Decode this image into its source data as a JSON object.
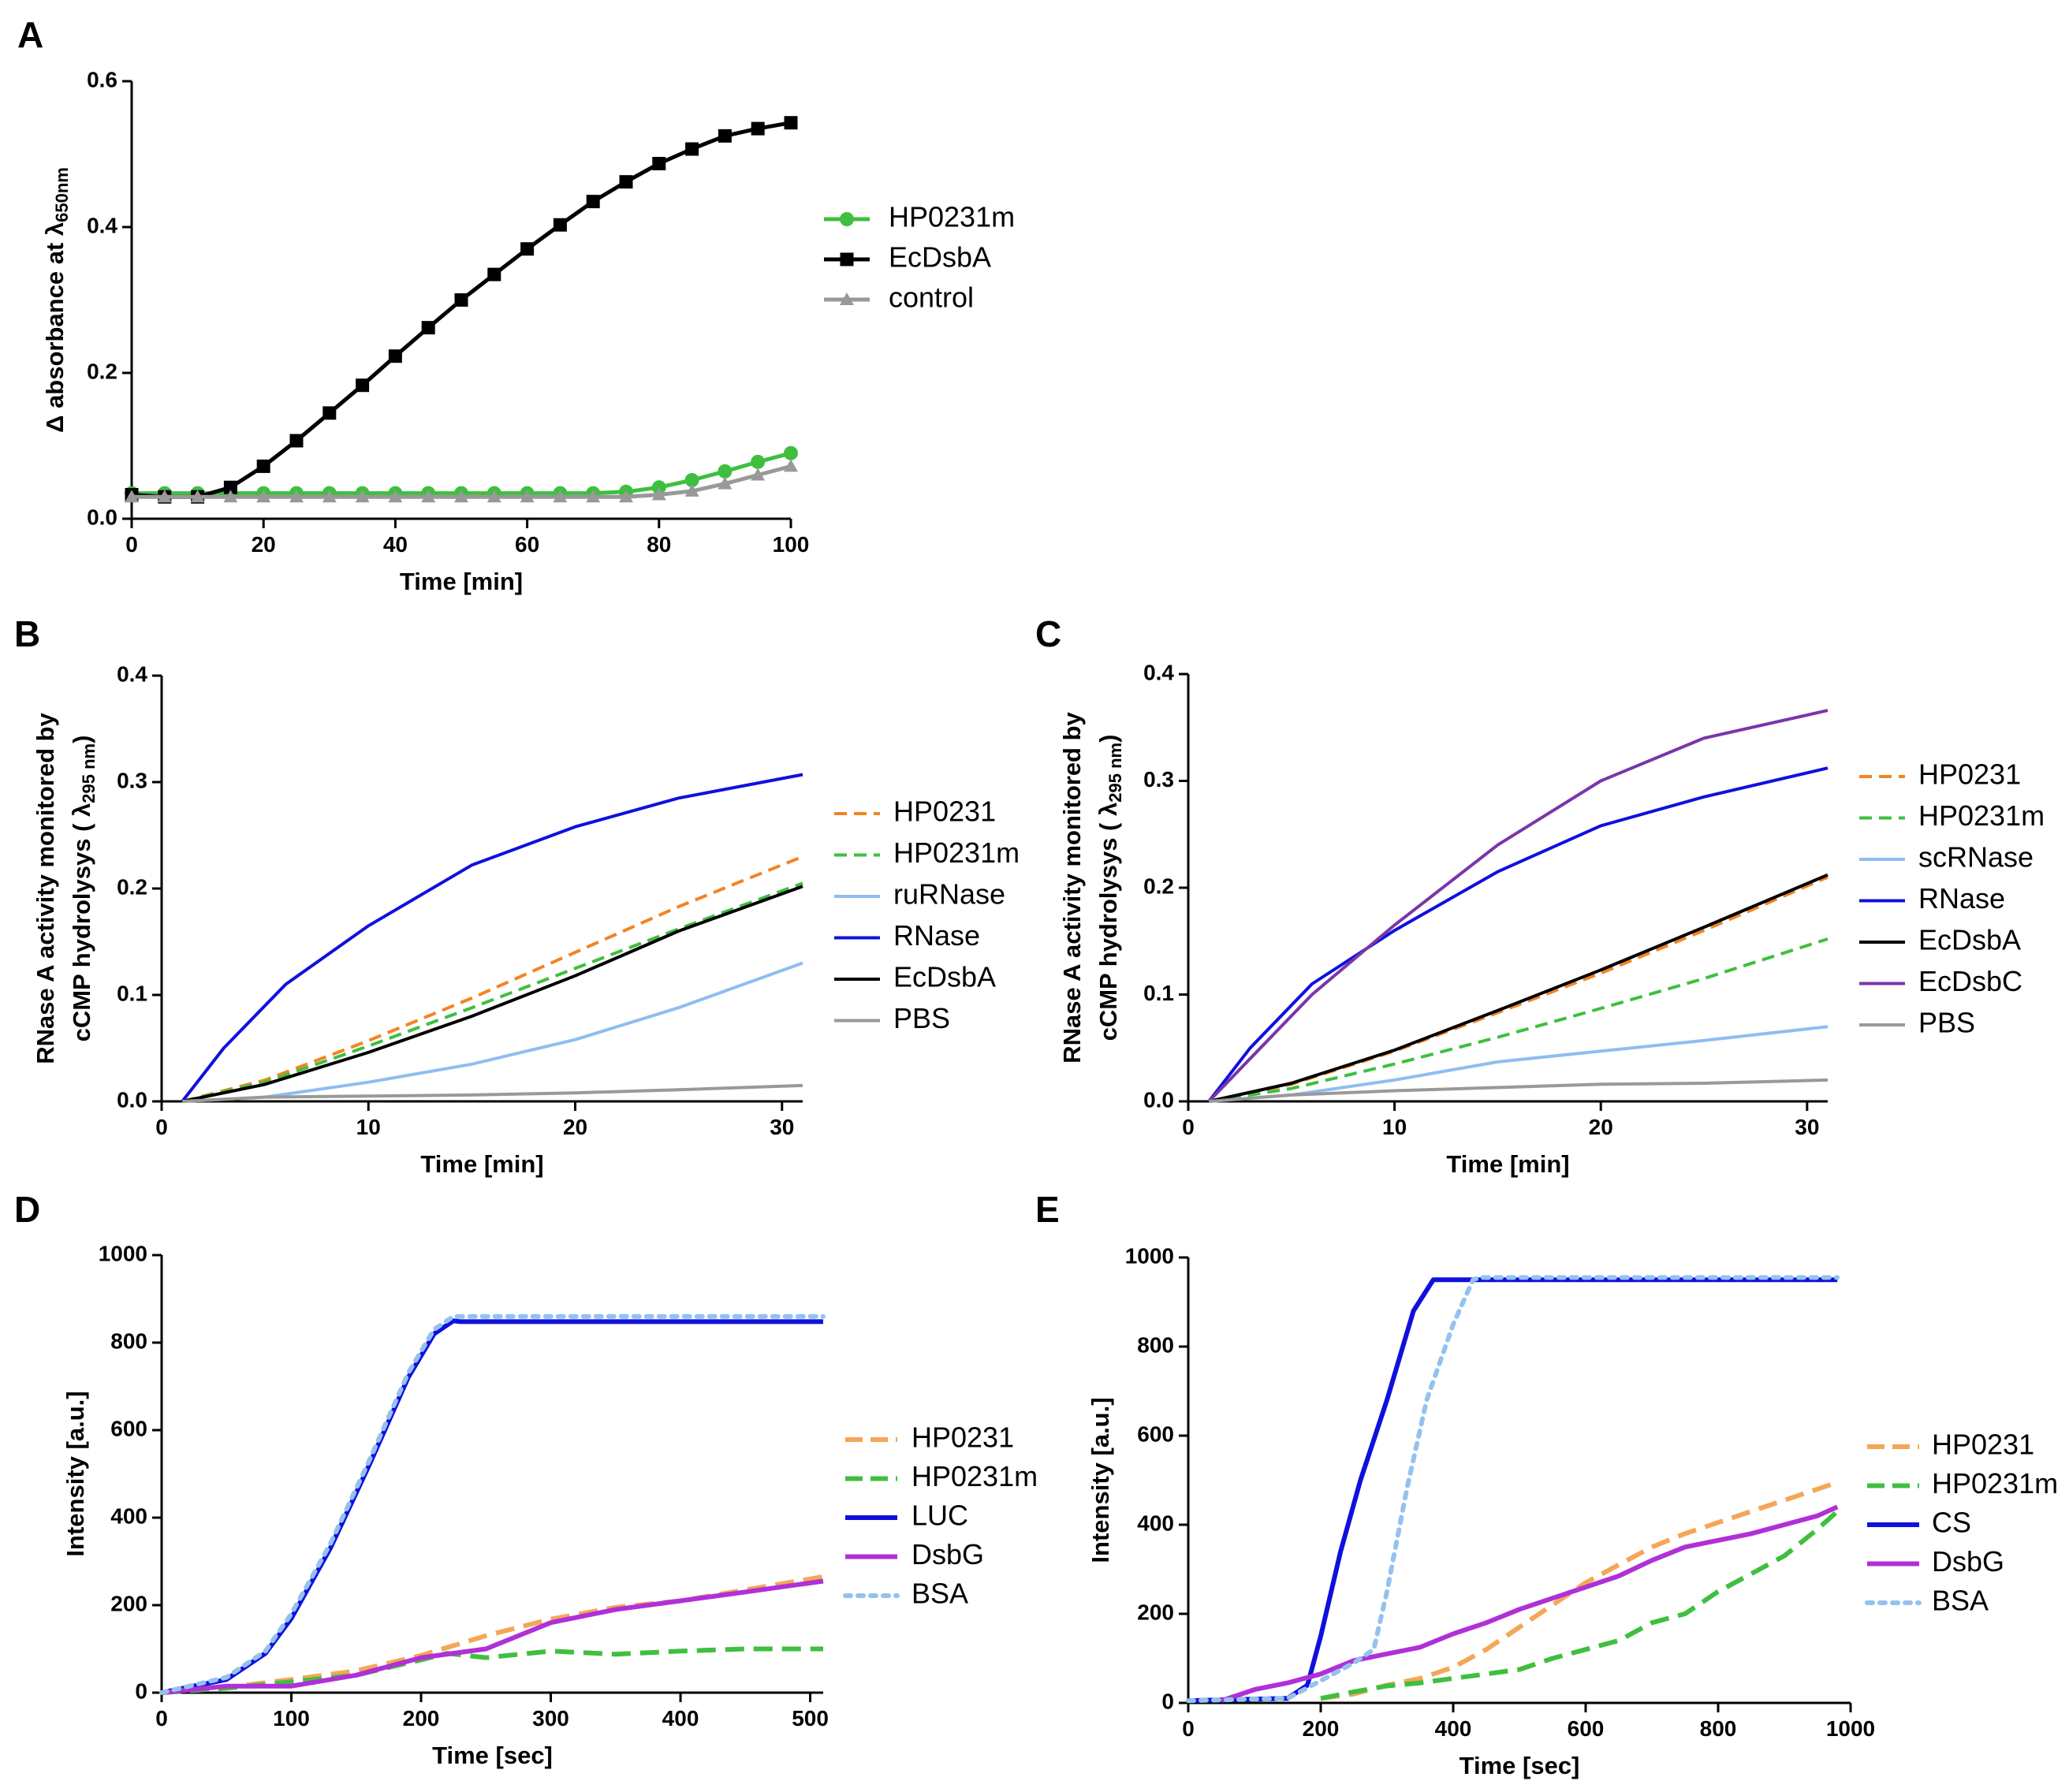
{
  "figure": {
    "panels": [
      "A",
      "B",
      "C",
      "D",
      "E"
    ]
  },
  "chart_data": [
    {
      "id": "A",
      "type": "line",
      "xlabel": "Time [min]",
      "ylabel_prefix": "Δ absorbance at ",
      "ylabel_lambda": "λ",
      "ylabel_sub": "650nm",
      "xlim": [
        0,
        100
      ],
      "ylim": [
        0,
        0.6
      ],
      "xticks": [
        0,
        20,
        40,
        60,
        80,
        100
      ],
      "yticks": [
        0.0,
        0.2,
        0.4,
        0.6
      ],
      "ytick_labels": [
        "0.0",
        "0.2",
        "0.4",
        "0.6"
      ],
      "legend": "right",
      "series": [
        {
          "name": "HP0231m",
          "color": "#3fbf3f",
          "marker": "circle",
          "dash": "solid",
          "x": [
            0,
            5,
            10,
            15,
            20,
            25,
            30,
            35,
            40,
            45,
            50,
            55,
            60,
            65,
            70,
            75,
            80,
            85,
            90,
            95,
            100
          ],
          "y": [
            0.035,
            0.035,
            0.035,
            0.035,
            0.035,
            0.035,
            0.035,
            0.035,
            0.035,
            0.035,
            0.035,
            0.035,
            0.035,
            0.035,
            0.035,
            0.037,
            0.043,
            0.053,
            0.065,
            0.078,
            0.09
          ]
        },
        {
          "name": "EcDsbA",
          "color": "#000000",
          "marker": "square",
          "dash": "solid",
          "x": [
            0,
            5,
            10,
            15,
            20,
            25,
            30,
            35,
            40,
            45,
            50,
            55,
            60,
            65,
            70,
            75,
            80,
            85,
            90,
            95,
            100
          ],
          "y": [
            0.033,
            0.03,
            0.03,
            0.043,
            0.072,
            0.107,
            0.145,
            0.183,
            0.223,
            0.262,
            0.3,
            0.335,
            0.37,
            0.403,
            0.435,
            0.462,
            0.487,
            0.507,
            0.525,
            0.535,
            0.543
          ]
        },
        {
          "name": "control",
          "color": "#999999",
          "marker": "triangle",
          "dash": "solid",
          "x": [
            0,
            5,
            10,
            15,
            20,
            25,
            30,
            35,
            40,
            45,
            50,
            55,
            60,
            65,
            70,
            75,
            80,
            85,
            90,
            95,
            100
          ],
          "y": [
            0.03,
            0.03,
            0.03,
            0.03,
            0.03,
            0.03,
            0.03,
            0.03,
            0.03,
            0.03,
            0.03,
            0.03,
            0.03,
            0.03,
            0.03,
            0.03,
            0.033,
            0.038,
            0.048,
            0.06,
            0.072
          ]
        }
      ]
    },
    {
      "id": "B",
      "type": "line",
      "xlabel": "Time [min]",
      "ylabel_line1": "RNase A activity monitored by",
      "ylabel_line2_prefix": "cCMP hydrolysys ( ",
      "ylabel_lambda": "λ",
      "ylabel_sub": "295 nm",
      "ylabel_suffix": ")",
      "xlim": [
        0,
        31
      ],
      "ylim": [
        0,
        0.4
      ],
      "xticks": [
        0,
        10,
        20,
        30
      ],
      "yticks": [
        0.0,
        0.1,
        0.2,
        0.3,
        0.4
      ],
      "ytick_labels": [
        "0.0",
        "0.1",
        "0.2",
        "0.3",
        "0.4"
      ],
      "legend": "right",
      "series": [
        {
          "name": "HP0231",
          "color": "#f28522",
          "dash": "dashed",
          "x": [
            1,
            5,
            10,
            15,
            20,
            25,
            31
          ],
          "y": [
            0,
            0.02,
            0.057,
            0.097,
            0.14,
            0.183,
            0.23
          ]
        },
        {
          "name": "HP0231m",
          "color": "#3fbf3f",
          "dash": "dashed",
          "x": [
            1,
            5,
            10,
            15,
            20,
            25,
            31
          ],
          "y": [
            0,
            0.018,
            0.052,
            0.088,
            0.125,
            0.162,
            0.205
          ]
        },
        {
          "name": "ruRNase",
          "color": "#8fbdf0",
          "dash": "solid",
          "x": [
            1,
            5,
            10,
            15,
            20,
            25,
            31
          ],
          "y": [
            0,
            0.004,
            0.018,
            0.035,
            0.058,
            0.088,
            0.13
          ]
        },
        {
          "name": "RNase",
          "color": "#1010dd",
          "dash": "solid",
          "x": [
            1,
            3,
            6,
            10,
            15,
            20,
            25,
            31
          ],
          "y": [
            0,
            0.05,
            0.11,
            0.165,
            0.222,
            0.258,
            0.285,
            0.307
          ]
        },
        {
          "name": "EcDsbA",
          "color": "#000000",
          "dash": "solid",
          "x": [
            1,
            5,
            10,
            15,
            20,
            25,
            31
          ],
          "y": [
            0,
            0.016,
            0.046,
            0.08,
            0.118,
            0.16,
            0.202
          ]
        },
        {
          "name": "PBS",
          "color": "#999999",
          "dash": "solid",
          "x": [
            1,
            5,
            10,
            15,
            20,
            25,
            31
          ],
          "y": [
            0,
            0.004,
            0.005,
            0.006,
            0.008,
            0.011,
            0.015
          ]
        }
      ]
    },
    {
      "id": "C",
      "type": "line",
      "xlabel": "Time [min]",
      "ylabel_line1": "RNase A activity monitored by",
      "ylabel_line2_prefix": "cCMP hydrolysys ( ",
      "ylabel_lambda": "λ",
      "ylabel_sub": "295 nm",
      "ylabel_suffix": ")",
      "xlim": [
        0,
        31
      ],
      "ylim": [
        0,
        0.4
      ],
      "xticks": [
        0,
        10,
        20,
        30
      ],
      "yticks": [
        0.0,
        0.1,
        0.2,
        0.3,
        0.4
      ],
      "ytick_labels": [
        "0.0",
        "0.1",
        "0.2",
        "0.3",
        "0.4"
      ],
      "legend": "right",
      "series": [
        {
          "name": "HP0231",
          "color": "#f28522",
          "dash": "dashed",
          "x": [
            1,
            5,
            10,
            15,
            20,
            25,
            31
          ],
          "y": [
            0,
            0.016,
            0.047,
            0.083,
            0.12,
            0.16,
            0.21
          ]
        },
        {
          "name": "HP0231m",
          "color": "#3fbf3f",
          "dash": "dashed",
          "x": [
            1,
            5,
            10,
            15,
            20,
            25,
            31
          ],
          "y": [
            0,
            0.012,
            0.035,
            0.06,
            0.087,
            0.115,
            0.152
          ]
        },
        {
          "name": "scRNase",
          "color": "#8fbdf0",
          "dash": "solid",
          "x": [
            1,
            5,
            10,
            15,
            20,
            25,
            31
          ],
          "y": [
            0,
            0.006,
            0.02,
            0.037,
            0.047,
            0.057,
            0.07
          ]
        },
        {
          "name": "RNase",
          "color": "#1010dd",
          "dash": "solid",
          "x": [
            1,
            3,
            6,
            10,
            15,
            20,
            25,
            31
          ],
          "y": [
            0,
            0.05,
            0.11,
            0.16,
            0.215,
            0.258,
            0.285,
            0.312
          ]
        },
        {
          "name": "EcDsbA",
          "color": "#000000",
          "dash": "solid",
          "x": [
            1,
            5,
            10,
            15,
            20,
            25,
            31
          ],
          "y": [
            0,
            0.017,
            0.048,
            0.085,
            0.123,
            0.163,
            0.212
          ]
        },
        {
          "name": "EcDsbC",
          "color": "#7a35a8",
          "dash": "solid",
          "x": [
            1,
            3,
            6,
            10,
            15,
            20,
            25,
            31
          ],
          "y": [
            0,
            0.04,
            0.1,
            0.165,
            0.24,
            0.3,
            0.34,
            0.366
          ]
        },
        {
          "name": "PBS",
          "color": "#999999",
          "dash": "solid",
          "x": [
            1,
            5,
            10,
            15,
            20,
            25,
            31
          ],
          "y": [
            0,
            0.006,
            0.01,
            0.013,
            0.016,
            0.017,
            0.02
          ]
        }
      ]
    },
    {
      "id": "D",
      "type": "line",
      "xlabel": "Time [sec]",
      "ylabel": "Intensity [a.u.]",
      "xlim": [
        0,
        510
      ],
      "ylim": [
        0,
        1000
      ],
      "xticks": [
        0,
        100,
        200,
        300,
        400,
        500
      ],
      "yticks": [
        0,
        200,
        400,
        600,
        800,
        1000
      ],
      "ytick_labels": [
        "0",
        "200",
        "400",
        "600",
        "800",
        "1000"
      ],
      "legend": "right",
      "series": [
        {
          "name": "HP0231",
          "color": "#f5a657",
          "dash": "longdash",
          "x": [
            0,
            50,
            100,
            150,
            200,
            250,
            300,
            350,
            400,
            450,
            510
          ],
          "y": [
            0,
            12,
            30,
            50,
            85,
            130,
            168,
            195,
            210,
            235,
            265
          ]
        },
        {
          "name": "HP0231m",
          "color": "#3fbf3f",
          "dash": "longdash",
          "x": [
            0,
            50,
            100,
            150,
            200,
            220,
            250,
            300,
            350,
            400,
            450,
            510
          ],
          "y": [
            0,
            10,
            25,
            40,
            75,
            90,
            80,
            95,
            88,
            95,
            100,
            100
          ]
        },
        {
          "name": "LUC",
          "color": "#1010dd",
          "dash": "solid",
          "x": [
            0,
            50,
            80,
            100,
            130,
            160,
            190,
            210,
            225,
            230,
            510
          ],
          "y": [
            0,
            30,
            90,
            170,
            330,
            520,
            720,
            820,
            850,
            848,
            848
          ]
        },
        {
          "name": "DsbG",
          "color": "#b030d8",
          "dash": "solid",
          "x": [
            0,
            50,
            100,
            150,
            200,
            250,
            300,
            350,
            400,
            450,
            510
          ],
          "y": [
            0,
            15,
            15,
            40,
            80,
            100,
            160,
            190,
            210,
            230,
            255
          ]
        },
        {
          "name": "BSA",
          "color": "#93c2ee",
          "dash": "dotted",
          "x": [
            0,
            50,
            80,
            100,
            130,
            160,
            190,
            210,
            225,
            230,
            510
          ],
          "y": [
            0,
            35,
            95,
            180,
            340,
            530,
            730,
            830,
            860,
            860,
            860
          ]
        }
      ]
    },
    {
      "id": "E",
      "type": "line",
      "xlabel": "Time [sec]",
      "ylabel": "Intensity [a.u.]",
      "xlim": [
        0,
        1000
      ],
      "ylim": [
        0,
        1000
      ],
      "xticks": [
        0,
        200,
        400,
        600,
        800,
        1000
      ],
      "yticks": [
        0,
        200,
        400,
        600,
        800,
        1000
      ],
      "ytick_labels": [
        "0",
        "200",
        "400",
        "600",
        "800",
        "1000"
      ],
      "legend": "right",
      "series": [
        {
          "name": "HP0231",
          "color": "#f5a657",
          "dash": "longdash",
          "x": [
            200,
            250,
            300,
            350,
            400,
            450,
            500,
            550,
            600,
            650,
            700,
            750,
            800,
            850,
            900,
            950,
            980
          ],
          "y": [
            10,
            20,
            40,
            55,
            80,
            120,
            170,
            220,
            270,
            310,
            350,
            380,
            405,
            430,
            455,
            480,
            495
          ]
        },
        {
          "name": "HP0231m",
          "color": "#3fbf3f",
          "dash": "longdash",
          "x": [
            200,
            250,
            300,
            350,
            400,
            450,
            500,
            550,
            600,
            650,
            700,
            750,
            800,
            850,
            900,
            950,
            980
          ],
          "y": [
            10,
            25,
            38,
            45,
            55,
            65,
            75,
            100,
            120,
            140,
            180,
            200,
            250,
            290,
            330,
            390,
            430
          ]
        },
        {
          "name": "CS",
          "color": "#1010dd",
          "dash": "solid",
          "x": [
            0,
            150,
            180,
            200,
            230,
            260,
            300,
            340,
            370,
            380,
            980
          ],
          "y": [
            5,
            10,
            40,
            150,
            340,
            500,
            680,
            880,
            950,
            950,
            950
          ]
        },
        {
          "name": "DsbG",
          "color": "#b030d8",
          "dash": "solid",
          "x": [
            50,
            100,
            150,
            200,
            250,
            300,
            350,
            400,
            450,
            500,
            550,
            600,
            650,
            700,
            750,
            800,
            850,
            900,
            950,
            980
          ],
          "y": [
            5,
            30,
            45,
            65,
            95,
            110,
            125,
            155,
            180,
            210,
            235,
            260,
            285,
            320,
            350,
            365,
            380,
            400,
            420,
            440
          ]
        },
        {
          "name": "BSA",
          "color": "#93c2ee",
          "dash": "dotted",
          "x": [
            0,
            150,
            200,
            250,
            280,
            300,
            330,
            360,
            400,
            430,
            440,
            980
          ],
          "y": [
            5,
            10,
            50,
            90,
            120,
            250,
            480,
            680,
            850,
            950,
            955,
            955
          ]
        }
      ]
    }
  ]
}
